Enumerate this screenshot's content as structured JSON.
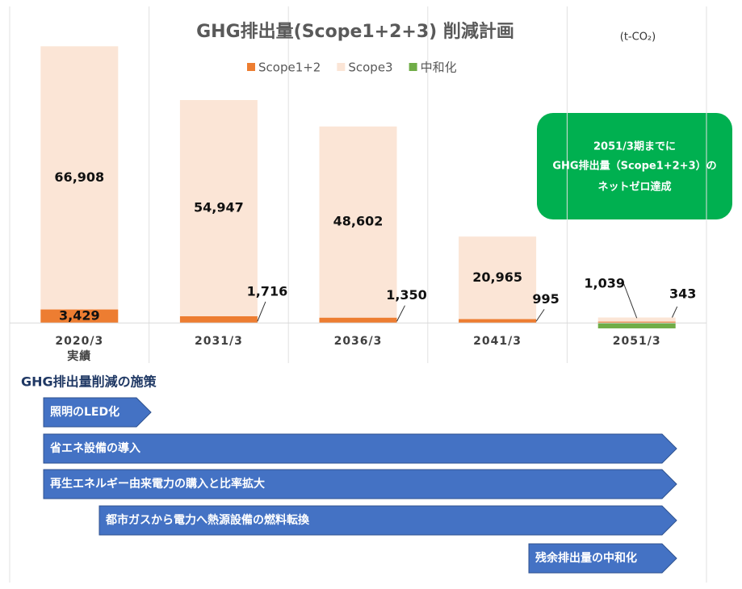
{
  "chart_data": {
    "type": "bar",
    "stacked": true,
    "title": "GHG排出量(Scope1+2+3)  削減計画",
    "unit": "(t-CO₂)",
    "categories": [
      "2020/3\n実績",
      "2031/3",
      "2036/3",
      "2041/3",
      "2051/3"
    ],
    "series": [
      {
        "name": "Scope1+2",
        "color": "#ed7d31",
        "values": [
          3429,
          1716,
          1350,
          995,
          343
        ],
        "value_labels": [
          "3,429",
          "1,716",
          "1,350",
          "995",
          "343"
        ]
      },
      {
        "name": "Scope3",
        "color": "#fbe5d6",
        "values": [
          66908,
          54947,
          48602,
          20965,
          1039
        ],
        "value_labels": [
          "66,908",
          "54,947",
          "48,602",
          "20,965",
          "1,039"
        ]
      },
      {
        "name": "中和化",
        "color": "#70ad47",
        "values": [
          null,
          null,
          null,
          null,
          -1382
        ],
        "value_labels": [
          null,
          null,
          null,
          null,
          null
        ]
      }
    ],
    "ylim": [
      -10000,
      78000
    ],
    "legend": "top",
    "annotation": [
      "2051/3期までに",
      "GHG排出量（Scope1+2+3）の",
      "ネットゼロ達成"
    ]
  },
  "measures": {
    "title": "GHG排出量削減の施策",
    "items": [
      "照明のLED化",
      "省エネ設備の導入",
      "再生エネルギー由来電力の購入と比率拡大",
      "都市ガスから電力へ熱源設備の燃料転換",
      "残余排出量の中和化"
    ]
  }
}
